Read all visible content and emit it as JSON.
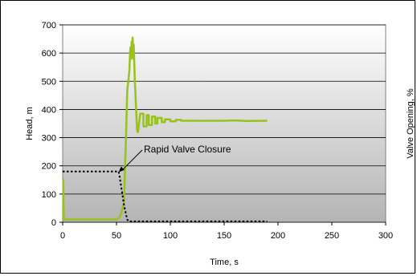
{
  "chart_data": {
    "type": "line",
    "xlabel": "Time, s",
    "ylabel": "Head, m",
    "y2label": "Valve Opening, %",
    "xlim": [
      0,
      300
    ],
    "ylim": [
      0,
      700
    ],
    "x_ticks": [
      "0",
      "50",
      "100",
      "150",
      "200",
      "250",
      "300"
    ],
    "y_ticks": [
      "0",
      "100",
      "200",
      "300",
      "400",
      "500",
      "600",
      "700"
    ],
    "grid": "horizontal",
    "background": "gradient gray",
    "annotation": "Rapid Valve Closure",
    "series": [
      {
        "style": "solid",
        "color": "#99c21a",
        "x": [
          0,
          0.6,
          1,
          50,
          53,
          55,
          57,
          58,
          59,
          60,
          61,
          62,
          62.5,
          63,
          63.5,
          64,
          64.5,
          65,
          65.5,
          66,
          66.5,
          67,
          67.5,
          68,
          68.5,
          69,
          69.5,
          70,
          72,
          72,
          75,
          75,
          78,
          78,
          80,
          80,
          83,
          83,
          86,
          86,
          88,
          88,
          92,
          92,
          95,
          95,
          100,
          100,
          105,
          105,
          110,
          110,
          120,
          150,
          160,
          170,
          190
        ],
        "y": [
          150,
          150,
          10,
          10,
          18,
          40,
          70,
          200,
          330,
          470,
          500,
          540,
          600,
          620,
          580,
          640,
          600,
          655,
          580,
          630,
          570,
          500,
          470,
          420,
          380,
          330,
          320,
          320,
          385,
          385,
          385,
          340,
          340,
          380,
          380,
          345,
          345,
          375,
          375,
          350,
          350,
          370,
          370,
          355,
          355,
          365,
          365,
          358,
          358,
          363,
          363,
          360,
          360,
          360,
          361,
          359,
          360
        ]
      },
      {
        "style": "dotted",
        "color": "#000000",
        "x": [
          0,
          52,
          53,
          55,
          57,
          59,
          60,
          61,
          62,
          190
        ],
        "y": [
          180,
          180,
          160,
          110,
          60,
          25,
          10,
          4,
          3,
          3
        ]
      }
    ]
  }
}
